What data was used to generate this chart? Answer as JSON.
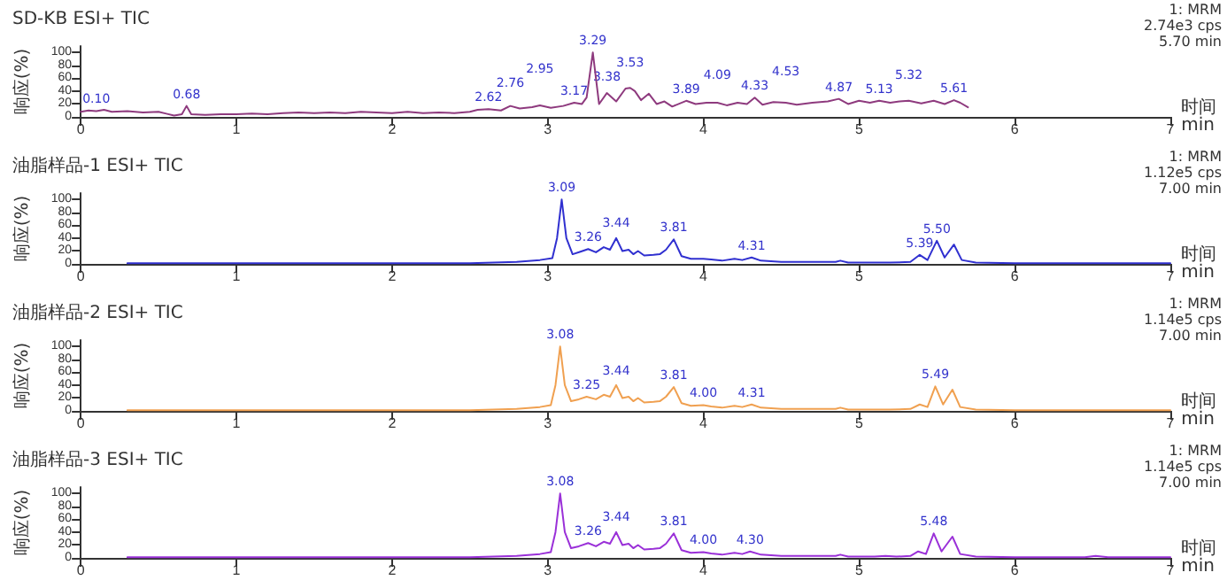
{
  "chart_data": [
    {
      "type": "line",
      "title": "SD-KB ESI+ TIC",
      "xlabel": "时间\nmin",
      "ylabel": "响应(%)",
      "xlim": [
        0,
        7
      ],
      "xticks": [
        0,
        1,
        2,
        3,
        4,
        5,
        6,
        7
      ],
      "ylim": [
        0,
        110
      ],
      "yticks": [
        0,
        20,
        40,
        60,
        80,
        100
      ],
      "x": [
        0.0,
        0.05,
        0.1,
        0.15,
        0.2,
        0.3,
        0.4,
        0.5,
        0.55,
        0.6,
        0.65,
        0.68,
        0.71,
        0.8,
        0.9,
        1.0,
        1.1,
        1.2,
        1.3,
        1.4,
        1.5,
        1.6,
        1.7,
        1.8,
        1.9,
        2.0,
        2.1,
        2.2,
        2.3,
        2.4,
        2.5,
        2.55,
        2.62,
        2.7,
        2.76,
        2.82,
        2.9,
        2.95,
        3.02,
        3.1,
        3.17,
        3.22,
        3.25,
        3.29,
        3.33,
        3.38,
        3.44,
        3.5,
        3.53,
        3.56,
        3.6,
        3.65,
        3.7,
        3.75,
        3.8,
        3.89,
        3.95,
        4.02,
        4.09,
        4.15,
        4.22,
        4.28,
        4.33,
        4.38,
        4.45,
        4.53,
        4.6,
        4.7,
        4.8,
        4.87,
        4.93,
        5.0,
        5.07,
        5.13,
        5.2,
        5.26,
        5.32,
        5.4,
        5.48,
        5.55,
        5.61,
        5.65,
        5.7
      ],
      "series": [
        {
          "color": "#8e3a7e",
          "values": [
            8,
            10,
            9,
            11,
            8,
            9,
            7,
            8,
            5,
            2,
            4,
            17,
            4,
            3,
            4,
            4,
            5,
            4,
            6,
            7,
            6,
            7,
            6,
            8,
            7,
            6,
            8,
            6,
            7,
            6,
            8,
            11,
            12,
            10,
            17,
            13,
            15,
            18,
            14,
            17,
            22,
            20,
            30,
            100,
            20,
            37,
            24,
            44,
            45,
            40,
            26,
            36,
            20,
            24,
            16,
            25,
            20,
            22,
            22,
            18,
            22,
            20,
            30,
            19,
            23,
            22,
            19,
            22,
            24,
            28,
            20,
            25,
            22,
            25,
            22,
            24,
            25,
            21,
            25,
            20,
            26,
            22,
            15
          ]
        }
      ],
      "annotations": [
        "1: MRM",
        "2.74e3 cps",
        "5.70 min",
        {
          "text": "0.10",
          "x": 0.1,
          "y": 9
        },
        {
          "text": "0.68",
          "x": 0.68,
          "y": 17
        },
        {
          "text": "2.62",
          "x": 2.62,
          "y": 12
        },
        {
          "text": "2.76",
          "x": 2.76,
          "y": 17
        },
        {
          "text": "2.95",
          "x": 2.95,
          "y": 18
        },
        {
          "text": "3.17",
          "x": 3.17,
          "y": 22
        },
        {
          "text": "3.29",
          "x": 3.29,
          "y": 100
        },
        {
          "text": "3.38",
          "x": 3.38,
          "y": 37
        },
        {
          "text": "3.53",
          "x": 3.53,
          "y": 45
        },
        {
          "text": "3.89",
          "x": 3.89,
          "y": 25
        },
        {
          "text": "4.09",
          "x": 4.09,
          "y": 22
        },
        {
          "text": "4.33",
          "x": 4.33,
          "y": 30
        },
        {
          "text": "4.53",
          "x": 4.53,
          "y": 22
        },
        {
          "text": "4.87",
          "x": 4.87,
          "y": 28
        },
        {
          "text": "5.13",
          "x": 5.13,
          "y": 25
        },
        {
          "text": "5.32",
          "x": 5.32,
          "y": 25
        },
        {
          "text": "5.61",
          "x": 5.61,
          "y": 26
        }
      ]
    },
    {
      "type": "line",
      "title": "油脂样品-1 ESI+ TIC",
      "xlabel": "时间\nmin",
      "ylabel": "响应(%)",
      "xlim": [
        0,
        7
      ],
      "xticks": [
        0,
        1,
        2,
        3,
        4,
        5,
        6,
        7
      ],
      "ylim": [
        0,
        110
      ],
      "yticks": [
        0,
        20,
        40,
        60,
        80,
        100
      ],
      "x": [
        0.3,
        1.0,
        2.0,
        2.5,
        2.8,
        2.95,
        3.03,
        3.06,
        3.09,
        3.12,
        3.16,
        3.21,
        3.26,
        3.31,
        3.36,
        3.4,
        3.44,
        3.48,
        3.52,
        3.55,
        3.58,
        3.62,
        3.68,
        3.72,
        3.76,
        3.81,
        3.86,
        3.92,
        4.0,
        4.05,
        4.12,
        4.2,
        4.25,
        4.31,
        4.37,
        4.5,
        4.7,
        4.85,
        4.88,
        4.93,
        5.2,
        5.33,
        5.39,
        5.44,
        5.5,
        5.55,
        5.61,
        5.66,
        5.75,
        6.0,
        6.5,
        7.0
      ],
      "series": [
        {
          "color": "#3030d0",
          "values": [
            1,
            1,
            1,
            1,
            3,
            6,
            9,
            40,
            100,
            40,
            15,
            19,
            23,
            18,
            26,
            22,
            40,
            20,
            22,
            15,
            20,
            13,
            14,
            15,
            22,
            38,
            12,
            8,
            8,
            7,
            5,
            8,
            6,
            10,
            5,
            3,
            3,
            3,
            5,
            2,
            2,
            3,
            14,
            6,
            36,
            10,
            30,
            6,
            2,
            1,
            1,
            1
          ]
        }
      ],
      "annotations": [
        "1: MRM",
        "1.12e5 cps",
        "7.00 min",
        {
          "text": "3.09",
          "x": 3.09,
          "y": 100
        },
        {
          "text": "3.26",
          "x": 3.26,
          "y": 23
        },
        {
          "text": "3.44",
          "x": 3.44,
          "y": 40
        },
        {
          "text": "3.81",
          "x": 3.81,
          "y": 38
        },
        {
          "text": "4.31",
          "x": 4.31,
          "y": 10
        },
        {
          "text": "5.39",
          "x": 5.39,
          "y": 14
        },
        {
          "text": "5.50",
          "x": 5.5,
          "y": 36
        }
      ]
    },
    {
      "type": "line",
      "title": "油脂样品-2 ESI+ TIC",
      "xlabel": "时间\nmin",
      "ylabel": "响应(%)",
      "xlim": [
        0,
        7
      ],
      "xticks": [
        0,
        1,
        2,
        3,
        4,
        5,
        6,
        7
      ],
      "ylim": [
        0,
        110
      ],
      "yticks": [
        0,
        20,
        40,
        60,
        80,
        100
      ],
      "x": [
        0.3,
        1.0,
        2.0,
        2.5,
        2.8,
        2.95,
        3.02,
        3.05,
        3.08,
        3.11,
        3.15,
        3.2,
        3.25,
        3.31,
        3.36,
        3.4,
        3.44,
        3.48,
        3.52,
        3.55,
        3.58,
        3.62,
        3.68,
        3.72,
        3.76,
        3.81,
        3.86,
        3.92,
        4.0,
        4.05,
        4.12,
        4.2,
        4.25,
        4.31,
        4.37,
        4.5,
        4.7,
        4.85,
        4.88,
        4.93,
        5.2,
        5.33,
        5.39,
        5.44,
        5.49,
        5.54,
        5.6,
        5.65,
        5.75,
        6.0,
        6.5,
        7.0
      ],
      "series": [
        {
          "color": "#f0a050",
          "values": [
            1,
            1,
            1,
            1,
            3,
            6,
            9,
            40,
            100,
            40,
            15,
            18,
            22,
            18,
            25,
            22,
            40,
            20,
            22,
            15,
            20,
            13,
            14,
            15,
            22,
            37,
            12,
            8,
            9,
            7,
            5,
            8,
            6,
            10,
            5,
            3,
            3,
            3,
            5,
            2,
            2,
            3,
            10,
            6,
            38,
            10,
            33,
            6,
            2,
            1,
            1,
            1
          ]
        }
      ],
      "annotations": [
        "1: MRM",
        "1.14e5 cps",
        "7.00 min",
        {
          "text": "3.08",
          "x": 3.08,
          "y": 100
        },
        {
          "text": "3.25",
          "x": 3.25,
          "y": 22
        },
        {
          "text": "3.44",
          "x": 3.44,
          "y": 40
        },
        {
          "text": "3.81",
          "x": 3.81,
          "y": 37
        },
        {
          "text": "4.00",
          "x": 4.0,
          "y": 9
        },
        {
          "text": "4.31",
          "x": 4.31,
          "y": 10
        },
        {
          "text": "5.49",
          "x": 5.49,
          "y": 38
        }
      ]
    },
    {
      "type": "line",
      "title": "油脂样品-3 ESI+ TIC",
      "xlabel": "时间\nmin",
      "ylabel": "响应(%)",
      "xlim": [
        0,
        7
      ],
      "xticks": [
        0,
        1,
        2,
        3,
        4,
        5,
        6,
        7
      ],
      "ylim": [
        0,
        110
      ],
      "yticks": [
        0,
        20,
        40,
        60,
        80,
        100
      ],
      "x": [
        0.3,
        1.0,
        2.0,
        2.5,
        2.8,
        2.95,
        3.02,
        3.05,
        3.08,
        3.11,
        3.15,
        3.2,
        3.26,
        3.31,
        3.36,
        3.4,
        3.44,
        3.48,
        3.52,
        3.55,
        3.58,
        3.62,
        3.68,
        3.72,
        3.76,
        3.81,
        3.86,
        3.92,
        4.0,
        4.05,
        4.12,
        4.2,
        4.25,
        4.3,
        4.37,
        4.5,
        4.7,
        4.85,
        4.88,
        4.93,
        5.1,
        5.17,
        5.24,
        5.33,
        5.38,
        5.43,
        5.48,
        5.53,
        5.6,
        5.65,
        5.75,
        6.0,
        6.45,
        6.52,
        6.6,
        7.0
      ],
      "series": [
        {
          "color": "#9a30d8",
          "values": [
            1,
            1,
            1,
            1,
            3,
            6,
            9,
            40,
            100,
            40,
            15,
            18,
            23,
            18,
            25,
            22,
            40,
            20,
            22,
            15,
            20,
            13,
            14,
            15,
            22,
            38,
            12,
            8,
            9,
            7,
            5,
            8,
            6,
            10,
            5,
            3,
            3,
            3,
            5,
            2,
            2,
            3,
            2,
            3,
            10,
            6,
            38,
            10,
            33,
            6,
            2,
            1,
            1,
            3,
            1,
            1
          ]
        }
      ],
      "annotations": [
        "1: MRM",
        "1.14e5 cps",
        "7.00 min",
        {
          "text": "3.08",
          "x": 3.08,
          "y": 100
        },
        {
          "text": "3.26",
          "x": 3.26,
          "y": 23
        },
        {
          "text": "3.44",
          "x": 3.44,
          "y": 40
        },
        {
          "text": "3.81",
          "x": 3.81,
          "y": 38
        },
        {
          "text": "4.00",
          "x": 4.0,
          "y": 9
        },
        {
          "text": "4.30",
          "x": 4.3,
          "y": 10
        },
        {
          "text": "5.48",
          "x": 5.48,
          "y": 38
        }
      ]
    }
  ]
}
